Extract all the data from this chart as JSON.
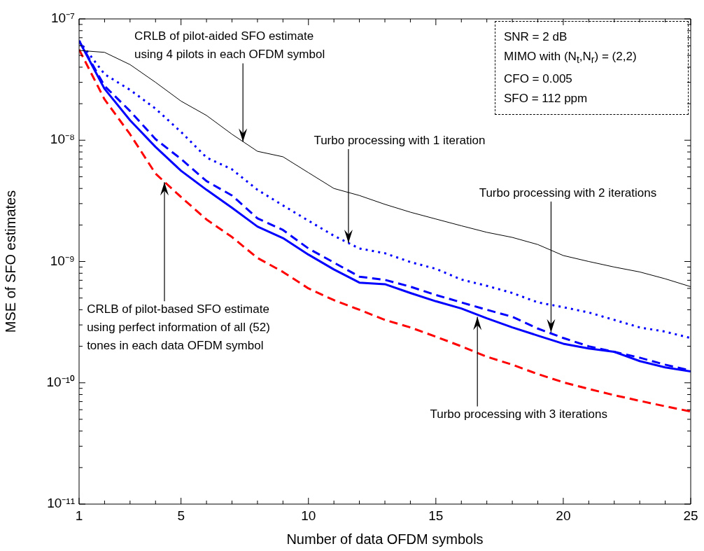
{
  "chart_data": {
    "type": "line",
    "xlabel": "Number of data OFDM symbols",
    "ylabel": "MSE of SFO estimates",
    "log": "y",
    "legend": false,
    "marker": "none",
    "x": [
      1,
      2,
      3,
      4,
      5,
      6,
      7,
      8,
      9,
      10,
      11,
      12,
      13,
      14,
      15,
      16,
      17,
      18,
      19,
      20,
      21,
      22,
      23,
      24,
      25
    ],
    "xlim": [
      1,
      25
    ],
    "xticks": [
      1,
      {
        "value": 2,
        "label": null
      },
      {
        "value": 3,
        "label": null
      },
      {
        "value": 4,
        "label": null
      },
      5,
      {
        "value": 6,
        "label": null
      },
      {
        "value": 7,
        "label": null
      },
      {
        "value": 8,
        "label": null
      },
      {
        "value": 9,
        "label": null
      },
      10,
      {
        "value": 11,
        "label": null
      },
      {
        "value": 12,
        "label": null
      },
      {
        "value": 13,
        "label": null
      },
      {
        "value": 14,
        "label": null
      },
      15,
      {
        "value": 16,
        "label": null
      },
      {
        "value": 17,
        "label": null
      },
      {
        "value": 18,
        "label": null
      },
      {
        "value": 19,
        "label": null
      },
      20,
      {
        "value": 21,
        "label": null
      },
      {
        "value": 22,
        "label": null
      },
      {
        "value": 23,
        "label": null
      },
      {
        "value": 24,
        "label": null
      },
      25
    ],
    "ylim": [
      1e-11,
      1e-07
    ],
    "yticks": [
      {
        "value": 1e-11,
        "label": "10⁻¹¹"
      },
      {
        "value": 2e-11,
        "label": null
      },
      {
        "value": 3e-11,
        "label": null
      },
      {
        "value": 4e-11,
        "label": null
      },
      {
        "value": 5e-11,
        "label": null
      },
      {
        "value": 6e-11,
        "label": null
      },
      {
        "value": 7e-11,
        "label": null
      },
      {
        "value": 8e-11,
        "label": null
      },
      {
        "value": 9e-11,
        "label": null
      },
      {
        "value": 1e-10,
        "label": "10⁻¹⁰"
      },
      {
        "value": 2e-10,
        "label": null
      },
      {
        "value": 3e-10,
        "label": null
      },
      {
        "value": 4e-10,
        "label": null
      },
      {
        "value": 5e-10,
        "label": null
      },
      {
        "value": 6e-10,
        "label": null
      },
      {
        "value": 7e-10,
        "label": null
      },
      {
        "value": 8e-10,
        "label": null
      },
      {
        "value": 9e-10,
        "label": null
      },
      {
        "value": 1e-09,
        "label": "10⁻⁹"
      },
      {
        "value": 2e-09,
        "label": null
      },
      {
        "value": 3e-09,
        "label": null
      },
      {
        "value": 4e-09,
        "label": null
      },
      {
        "value": 5e-09,
        "label": null
      },
      {
        "value": 6e-09,
        "label": null
      },
      {
        "value": 7e-09,
        "label": null
      },
      {
        "value": 8e-09,
        "label": null
      },
      {
        "value": 9e-09,
        "label": null
      },
      {
        "value": 1e-08,
        "label": "10⁻⁸"
      },
      {
        "value": 2e-08,
        "label": null
      },
      {
        "value": 3e-08,
        "label": null
      },
      {
        "value": 4e-08,
        "label": null
      },
      {
        "value": 5e-08,
        "label": null
      },
      {
        "value": 6e-08,
        "label": null
      },
      {
        "value": 7e-08,
        "label": null
      },
      {
        "value": 8e-08,
        "label": null
      },
      {
        "value": 9e-08,
        "label": null
      },
      {
        "value": 1e-07,
        "label": "10⁻⁷"
      }
    ],
    "series": [
      {
        "color": "#000000",
        "line_style": "solid",
        "values": [
          5.5e-08,
          5.3e-08,
          4.2e-08,
          3e-08,
          2.1e-08,
          1.6e-08,
          1.12e-08,
          8.1e-09,
          7.3e-09,
          5.4e-09,
          4e-09,
          3.5e-09,
          2.96e-09,
          2.55e-09,
          2.24e-09,
          1.97e-09,
          1.74e-09,
          1.58e-09,
          1.38e-09,
          1.12e-09,
          1e-09,
          9e-10,
          8.2e-10,
          7.2e-10,
          6.2e-10
        ]
      },
      {
        "color": "#0000ff",
        "line_style": "dotted",
        "values": [
          6.6e-08,
          3.5e-08,
          2.6e-08,
          1.82e-08,
          1.17e-08,
          7.2e-09,
          5.75e-09,
          3.9e-09,
          2.9e-09,
          2.17e-09,
          1.63e-09,
          1.28e-09,
          1.17e-09,
          9.9e-10,
          8.7e-10,
          7.1e-10,
          6.3e-10,
          5.5e-10,
          4.6e-10,
          4.2e-10,
          3.8e-10,
          3.3e-10,
          2.86e-10,
          2.64e-10,
          2.34e-10
        ]
      },
      {
        "color": "#0000ff",
        "line_style": "dashed",
        "values": [
          6.6e-08,
          2.8e-08,
          1.74e-08,
          1.02e-08,
          7e-09,
          4.6e-09,
          3.5e-09,
          2.27e-09,
          1.82e-09,
          1.28e-09,
          9.8e-10,
          7.5e-10,
          7.06e-10,
          6.2e-10,
          5.3e-10,
          4.6e-10,
          4e-10,
          3.5e-10,
          2.8e-10,
          2.34e-10,
          2e-10,
          1.8e-10,
          1.61e-10,
          1.41e-10,
          1.26e-10
        ]
      },
      {
        "color": "#0000ff",
        "line_style": "solid",
        "values": [
          6.6e-08,
          2.65e-08,
          1.46e-08,
          8.8e-09,
          5.6e-09,
          3.9e-09,
          2.77e-09,
          1.94e-09,
          1.56e-09,
          1.14e-09,
          8.6e-10,
          6.7e-10,
          6.5e-10,
          5.5e-10,
          4.7e-10,
          4.1e-10,
          3.4e-10,
          2.86e-10,
          2.45e-10,
          2.1e-10,
          1.92e-10,
          1.8e-10,
          1.51e-10,
          1.34e-10,
          1.24e-10
        ]
      },
      {
        "color": "#ff0000",
        "line_style": "dashed",
        "values": [
          5.6e-08,
          2.17e-08,
          1.12e-08,
          5.3e-09,
          3.4e-09,
          2.22e-09,
          1.59e-09,
          1.07e-09,
          8.2e-10,
          6e-10,
          4.8e-10,
          4e-10,
          3.3e-10,
          2.86e-10,
          2.4e-10,
          2e-10,
          1.64e-10,
          1.41e-10,
          1.18e-10,
          1.01e-10,
          8.9e-11,
          7.9e-11,
          7.1e-11,
          6.4e-11,
          5.8e-11
        ]
      }
    ],
    "annotations": [
      {
        "text": "CRLB of pilot-aided SFO estimate\nusing 4 pilots in each OFDM symbol",
        "x": 7.43,
        "y": 9.7e-09
      },
      {
        "text": "Turbo processing with 1 iteration",
        "x": 11.57,
        "y": 1.42e-09
      },
      {
        "text": "Turbo processing with 2 iterations",
        "x": 19.52,
        "y": 2.6e-10
      },
      {
        "text": "Turbo processing with 3 iterations",
        "x": 16.63,
        "y": 3.5e-10
      },
      {
        "text": "CRLB of pilot-based SFO estimate\nusing perfect information of all (52)\ntones in each data OFDM symbol",
        "x": 4.35,
        "y": 4.5e-09
      },
      "SNR = 2 dB",
      "MIMO with (N$_{t}$,N$_{r}$) = (2,2)",
      "CFO = 0.005",
      "SFO = 112 ppm"
    ]
  }
}
